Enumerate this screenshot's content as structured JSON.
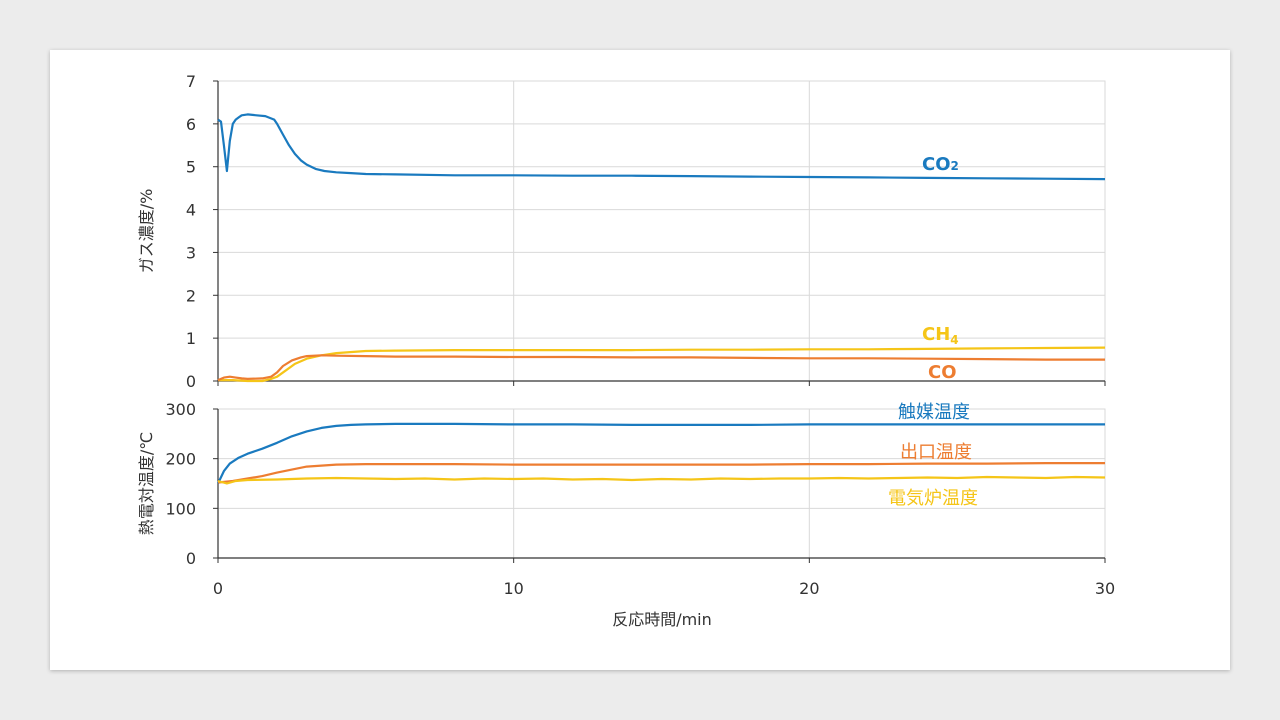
{
  "chart_data": [
    {
      "type": "line",
      "ylabel": "ガス濃度/%",
      "xlim": [
        0,
        30
      ],
      "ylim": [
        0,
        7
      ],
      "x_ticks": [
        "0",
        "10",
        "20",
        "30"
      ],
      "y_ticks": [
        "0",
        "1",
        "2",
        "3",
        "4",
        "5",
        "6",
        "7"
      ],
      "grid": true,
      "series": [
        {
          "name": "CO₂",
          "label_main": "CO",
          "label_sub": "2",
          "color": "#1a7abf",
          "x": [
            0,
            0.1,
            0.2,
            0.3,
            0.4,
            0.5,
            0.6,
            0.7,
            0.8,
            1.0,
            1.3,
            1.6,
            1.9,
            2.0,
            2.2,
            2.4,
            2.6,
            2.8,
            3.0,
            3.3,
            3.6,
            4.0,
            4.5,
            5,
            6,
            8,
            10,
            12,
            14,
            16,
            18,
            20,
            22,
            24,
            26,
            28,
            30
          ],
          "y": [
            6.1,
            6.05,
            5.5,
            4.9,
            5.6,
            6.0,
            6.1,
            6.15,
            6.2,
            6.22,
            6.2,
            6.18,
            6.1,
            6.0,
            5.75,
            5.5,
            5.3,
            5.15,
            5.05,
            4.95,
            4.9,
            4.87,
            4.85,
            4.83,
            4.82,
            4.8,
            4.8,
            4.79,
            4.79,
            4.78,
            4.77,
            4.76,
            4.75,
            4.74,
            4.73,
            4.72,
            4.71
          ]
        },
        {
          "name": "CH₄",
          "label_main": "CH",
          "label_sub": "4",
          "color": "#f5c518",
          "x": [
            0,
            0.5,
            1.0,
            1.5,
            1.8,
            2.0,
            2.3,
            2.6,
            3.0,
            3.5,
            4.0,
            5,
            6,
            8,
            10,
            12,
            14,
            16,
            18,
            20,
            22,
            24,
            26,
            28,
            30
          ],
          "y": [
            0.02,
            0.02,
            0.0,
            0.0,
            0.05,
            0.1,
            0.25,
            0.4,
            0.52,
            0.6,
            0.65,
            0.7,
            0.71,
            0.72,
            0.72,
            0.72,
            0.72,
            0.73,
            0.73,
            0.74,
            0.74,
            0.75,
            0.76,
            0.77,
            0.78
          ]
        },
        {
          "name": "CO",
          "label_main": "CO",
          "label_sub": "",
          "color": "#ed7d31",
          "x": [
            0,
            0.2,
            0.4,
            0.6,
            0.8,
            1.0,
            1.5,
            1.8,
            2.0,
            2.2,
            2.5,
            2.8,
            3.0,
            3.5,
            4.0,
            5,
            6,
            8,
            10,
            12,
            14,
            16,
            18,
            20,
            22,
            24,
            26,
            28,
            30
          ],
          "y": [
            0.02,
            0.08,
            0.1,
            0.08,
            0.06,
            0.05,
            0.06,
            0.1,
            0.2,
            0.35,
            0.48,
            0.55,
            0.58,
            0.6,
            0.59,
            0.58,
            0.57,
            0.57,
            0.56,
            0.56,
            0.55,
            0.55,
            0.54,
            0.53,
            0.53,
            0.52,
            0.51,
            0.5,
            0.5
          ]
        }
      ]
    },
    {
      "type": "line",
      "ylabel": "熱電対温度/℃",
      "xlabel": "反応時間/min",
      "xlim": [
        0,
        30
      ],
      "ylim": [
        0,
        300
      ],
      "x_ticks": [
        "0",
        "10",
        "20",
        "30"
      ],
      "y_ticks": [
        "0",
        "100",
        "200",
        "300"
      ],
      "grid": true,
      "series": [
        {
          "name": "触媒温度",
          "color": "#1a7abf",
          "x": [
            0,
            0.2,
            0.4,
            0.7,
            1.0,
            1.5,
            2.0,
            2.5,
            3.0,
            3.5,
            4.0,
            4.5,
            5,
            6,
            8,
            10,
            12,
            14,
            16,
            18,
            20,
            22,
            24,
            26,
            28,
            30
          ],
          "y": [
            150,
            175,
            190,
            202,
            210,
            220,
            232,
            245,
            255,
            262,
            266,
            268,
            269,
            270,
            270,
            269,
            269,
            268,
            268,
            268,
            269,
            269,
            269,
            269,
            269,
            269
          ]
        },
        {
          "name": "出口温度",
          "color": "#ed7d31",
          "x": [
            0,
            0.5,
            1.0,
            1.5,
            2.0,
            2.5,
            3.0,
            3.5,
            4.0,
            5,
            6,
            8,
            10,
            12,
            14,
            16,
            18,
            20,
            22,
            24,
            26,
            28,
            30
          ],
          "y": [
            152,
            155,
            160,
            165,
            172,
            178,
            184,
            186,
            188,
            189,
            189,
            189,
            188,
            188,
            188,
            188,
            188,
            189,
            189,
            190,
            190,
            191,
            191
          ]
        },
        {
          "name": "電気炉温度",
          "color": "#f5c518",
          "x": [
            0,
            0.3,
            0.6,
            1,
            2,
            3,
            4,
            5,
            6,
            7,
            8,
            9,
            10,
            11,
            12,
            13,
            14,
            15,
            16,
            17,
            18,
            19,
            20,
            21,
            22,
            23,
            24,
            25,
            26,
            27,
            28,
            29,
            30
          ],
          "y": [
            155,
            150,
            155,
            157,
            158,
            160,
            161,
            160,
            159,
            160,
            158,
            160,
            159,
            160,
            158,
            159,
            157,
            159,
            158,
            160,
            159,
            160,
            160,
            161,
            160,
            161,
            162,
            161,
            163,
            162,
            161,
            163,
            162
          ]
        }
      ]
    }
  ]
}
